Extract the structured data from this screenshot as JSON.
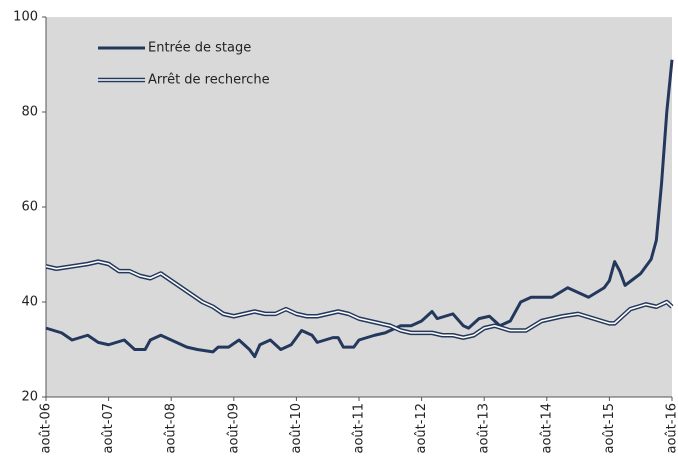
{
  "chart_data": {
    "type": "line",
    "series": [
      {
        "name": "Entrée de stage",
        "color": "#23385c",
        "style": "single",
        "x": [
          0,
          3,
          5,
          8,
          10,
          12,
          15,
          17,
          19,
          20,
          22,
          25,
          27,
          29,
          32,
          33,
          35,
          37,
          39,
          40,
          41,
          43,
          45,
          47,
          49,
          51,
          52,
          55,
          56,
          57,
          59,
          60,
          63,
          65,
          67,
          68,
          70,
          72,
          74,
          75,
          78,
          80,
          81,
          83,
          85,
          87,
          89,
          91,
          93,
          97,
          100,
          104,
          107,
          108,
          109,
          110,
          111,
          114,
          116,
          117,
          118,
          119,
          120
        ],
        "values": [
          34.5,
          33.5,
          32,
          33,
          31.5,
          31,
          32,
          30,
          30,
          32,
          33,
          31.5,
          30.5,
          30,
          29.5,
          30.5,
          30.5,
          32,
          30,
          28.5,
          31,
          32,
          30,
          31,
          34,
          33,
          31.5,
          32.5,
          32.5,
          30.5,
          30.5,
          32,
          33,
          33.5,
          34.5,
          35,
          35,
          36,
          38,
          36.5,
          37.5,
          35,
          34.5,
          36.5,
          37,
          35,
          36,
          40,
          41,
          41,
          43,
          41,
          43,
          44.5,
          48.5,
          46.5,
          43.5,
          46,
          49,
          53,
          65,
          80,
          91
        ]
      },
      {
        "name": "Arrêt de recherche",
        "color": "#23385c",
        "style": "double",
        "x": [
          0,
          2,
          5,
          8,
          10,
          12,
          14,
          16,
          18,
          20,
          22,
          24,
          26,
          28,
          30,
          32,
          34,
          36,
          38,
          40,
          42,
          44,
          46,
          48,
          50,
          52,
          54,
          56,
          58,
          60,
          62,
          64,
          66,
          68,
          70,
          72,
          74,
          76,
          78,
          80,
          82,
          84,
          86,
          89,
          92,
          95,
          99,
          102,
          105,
          108,
          109,
          112,
          115,
          117,
          119,
          120
        ],
        "values": [
          47.5,
          47,
          47.5,
          48,
          48.5,
          48,
          46.5,
          46.5,
          45.5,
          45,
          46,
          44.5,
          43,
          41.5,
          40,
          39,
          37.5,
          37,
          37.5,
          38,
          37.5,
          37.5,
          38.5,
          37.5,
          37,
          37,
          37.5,
          38,
          37.5,
          36.5,
          36,
          35.5,
          35,
          34,
          33.5,
          33.5,
          33.5,
          33,
          33,
          32.5,
          33,
          34.5,
          35,
          34,
          34,
          36,
          37,
          37.5,
          36.5,
          35.5,
          35.5,
          38.5,
          39.5,
          39,
          40,
          39
        ]
      }
    ],
    "xlim": [
      0,
      120
    ],
    "xticks": [
      {
        "value": 0,
        "label": "août-06"
      },
      {
        "value": 12,
        "label": "août-07"
      },
      {
        "value": 24,
        "label": "août-08"
      },
      {
        "value": 36,
        "label": "août-09"
      },
      {
        "value": 48,
        "label": "août-10"
      },
      {
        "value": 60,
        "label": "août-11"
      },
      {
        "value": 72,
        "label": "août-12"
      },
      {
        "value": 84,
        "label": "août-13"
      },
      {
        "value": 96,
        "label": "août-14"
      },
      {
        "value": 108,
        "label": "août-15"
      },
      {
        "value": 120,
        "label": "août-16"
      }
    ],
    "ylim": [
      20,
      100
    ],
    "yticks": [
      20,
      40,
      60,
      80,
      100
    ],
    "background": "#d9d9d9"
  }
}
